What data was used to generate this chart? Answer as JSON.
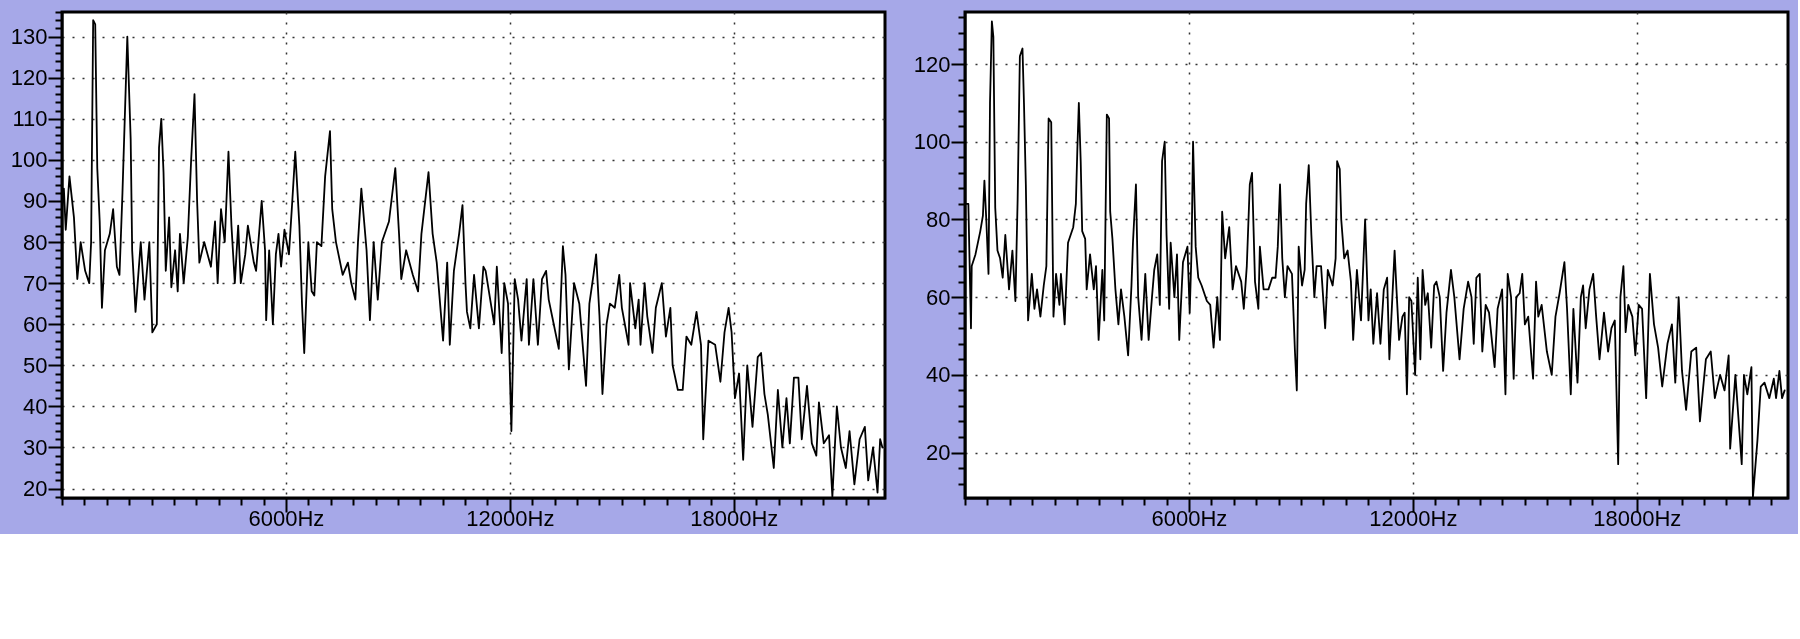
{
  "chart_data": [
    {
      "type": "line",
      "color": "#000000",
      "xlim": [
        0,
        22050
      ],
      "ylim": [
        17.7,
        136
      ],
      "grid": true,
      "xticks": [
        {
          "value": 0,
          "label": null
        },
        {
          "value": 600,
          "label": null
        },
        {
          "value": 1200,
          "label": null
        },
        {
          "value": 1800,
          "label": null
        },
        {
          "value": 2400,
          "label": null
        },
        {
          "value": 3000,
          "label": null
        },
        {
          "value": 3600,
          "label": null
        },
        {
          "value": 4200,
          "label": null
        },
        {
          "value": 4800,
          "label": null
        },
        {
          "value": 5400,
          "label": null
        },
        {
          "value": 6000,
          "label": "6000Hz"
        },
        {
          "value": 6600,
          "label": null
        },
        {
          "value": 7200,
          "label": null
        },
        {
          "value": 7800,
          "label": null
        },
        {
          "value": 8400,
          "label": null
        },
        {
          "value": 9000,
          "label": null
        },
        {
          "value": 9600,
          "label": null
        },
        {
          "value": 10200,
          "label": null
        },
        {
          "value": 10800,
          "label": null
        },
        {
          "value": 11400,
          "label": null
        },
        {
          "value": 12000,
          "label": "12000Hz"
        },
        {
          "value": 12600,
          "label": null
        },
        {
          "value": 13200,
          "label": null
        },
        {
          "value": 13800,
          "label": null
        },
        {
          "value": 14400,
          "label": null
        },
        {
          "value": 15000,
          "label": null
        },
        {
          "value": 15600,
          "label": null
        },
        {
          "value": 16200,
          "label": null
        },
        {
          "value": 16800,
          "label": null
        },
        {
          "value": 17400,
          "label": null
        },
        {
          "value": 18000,
          "label": "18000Hz"
        },
        {
          "value": 18600,
          "label": null
        },
        {
          "value": 19200,
          "label": null
        },
        {
          "value": 19800,
          "label": null
        },
        {
          "value": 20400,
          "label": null
        },
        {
          "value": 21000,
          "label": null
        },
        {
          "value": 21600,
          "label": null
        }
      ],
      "yticks": [
        {
          "value": 18,
          "label": null
        },
        20,
        {
          "value": 22,
          "label": null
        },
        {
          "value": 24,
          "label": null
        },
        {
          "value": 26,
          "label": null
        },
        {
          "value": 28,
          "label": null
        },
        30,
        {
          "value": 32,
          "label": null
        },
        {
          "value": 34,
          "label": null
        },
        {
          "value": 36,
          "label": null
        },
        {
          "value": 38,
          "label": null
        },
        40,
        {
          "value": 42,
          "label": null
        },
        {
          "value": 44,
          "label": null
        },
        {
          "value": 46,
          "label": null
        },
        {
          "value": 48,
          "label": null
        },
        50,
        {
          "value": 52,
          "label": null
        },
        {
          "value": 54,
          "label": null
        },
        {
          "value": 56,
          "label": null
        },
        {
          "value": 58,
          "label": null
        },
        60,
        {
          "value": 62,
          "label": null
        },
        {
          "value": 64,
          "label": null
        },
        {
          "value": 66,
          "label": null
        },
        {
          "value": 68,
          "label": null
        },
        70,
        {
          "value": 72,
          "label": null
        },
        {
          "value": 74,
          "label": null
        },
        {
          "value": 76,
          "label": null
        },
        {
          "value": 78,
          "label": null
        },
        80,
        {
          "value": 82,
          "label": null
        },
        {
          "value": 84,
          "label": null
        },
        {
          "value": 86,
          "label": null
        },
        {
          "value": 88,
          "label": null
        },
        90,
        {
          "value": 92,
          "label": null
        },
        {
          "value": 94,
          "label": null
        },
        {
          "value": 96,
          "label": null
        },
        {
          "value": 98,
          "label": null
        },
        100,
        {
          "value": 102,
          "label": null
        },
        {
          "value": 104,
          "label": null
        },
        {
          "value": 106,
          "label": null
        },
        {
          "value": 108,
          "label": null
        },
        110,
        {
          "value": 112,
          "label": null
        },
        {
          "value": 114,
          "label": null
        },
        {
          "value": 116,
          "label": null
        },
        {
          "value": 118,
          "label": null
        },
        120,
        {
          "value": 122,
          "label": null
        },
        {
          "value": 124,
          "label": null
        },
        {
          "value": 126,
          "label": null
        },
        {
          "value": 128,
          "label": null
        },
        130,
        {
          "value": 132,
          "label": null
        },
        {
          "value": 134,
          "label": null
        },
        {
          "value": 136,
          "label": null
        }
      ],
      "x": [
        0,
        50,
        100,
        200,
        320,
        410,
        500,
        620,
        730,
        780,
        835,
        890,
        945,
        1010,
        1070,
        1150,
        1280,
        1370,
        1470,
        1540,
        1620,
        1750,
        1840,
        1880,
        1970,
        2110,
        2210,
        2340,
        2420,
        2540,
        2600,
        2660,
        2720,
        2780,
        2870,
        2930,
        3030,
        3100,
        3160,
        3260,
        3370,
        3460,
        3550,
        3620,
        3680,
        3810,
        3990,
        4100,
        4170,
        4260,
        4360,
        4460,
        4540,
        4630,
        4720,
        4790,
        4910,
        4980,
        5140,
        5200,
        5350,
        5440,
        5470,
        5550,
        5650,
        5730,
        5800,
        5870,
        5960,
        6080,
        6170,
        6250,
        6360,
        6430,
        6490,
        6600,
        6690,
        6760,
        6830,
        6950,
        7050,
        7180,
        7240,
        7340,
        7520,
        7660,
        7750,
        7860,
        7930,
        8020,
        8160,
        8250,
        8350,
        8460,
        8570,
        8760,
        8930,
        9030,
        9090,
        9220,
        9400,
        9540,
        9630,
        9820,
        9930,
        10040,
        10210,
        10320,
        10390,
        10500,
        10640,
        10730,
        10810,
        10850,
        10940,
        11040,
        11170,
        11290,
        11350,
        11490,
        11580,
        11650,
        11780,
        11850,
        11950,
        12040,
        12130,
        12220,
        12310,
        12450,
        12510,
        12630,
        12750,
        12860,
        12970,
        13040,
        13130,
        13310,
        13420,
        13490,
        13580,
        13720,
        13860,
        14040,
        14130,
        14240,
        14310,
        14400,
        14480,
        14590,
        14680,
        14810,
        14930,
        15000,
        15180,
        15220,
        15360,
        15450,
        15500,
        15610,
        15680,
        15820,
        15910,
        16070,
        16180,
        16300,
        16360,
        16500,
        16630,
        16730,
        16860,
        17000,
        17120,
        17180,
        17320,
        17500,
        17640,
        17750,
        17860,
        17940,
        18030,
        18140,
        18250,
        18360,
        18500,
        18640,
        18730,
        18820,
        18910,
        19070,
        19180,
        19300,
        19410,
        19500,
        19610,
        19730,
        19820,
        19960,
        20090,
        20210,
        20280,
        20410,
        20550,
        20640,
        20760,
        20870,
        21000,
        21100,
        21230,
        21370,
        21510,
        21600,
        21730,
        21850,
        21920,
        21980
      ],
      "values": [
        88,
        93,
        83,
        96,
        86,
        71,
        80,
        73,
        70,
        80,
        134,
        133,
        98,
        85,
        64,
        78,
        82,
        88,
        74,
        72,
        92,
        130,
        105,
        78,
        63,
        80,
        66,
        80,
        58,
        60,
        103,
        110,
        97,
        73,
        86,
        69,
        78,
        68,
        82,
        70,
        81,
        100,
        116,
        90,
        75,
        80,
        74,
        85,
        70,
        88,
        80,
        102,
        84,
        70,
        84,
        70,
        77,
        84,
        75,
        73,
        90,
        78,
        61,
        78,
        60,
        77,
        82,
        74,
        83,
        77,
        90,
        102,
        84,
        65,
        53,
        80,
        68,
        67,
        80,
        79,
        96,
        107,
        88,
        80,
        72,
        75,
        70,
        66,
        80,
        93,
        78,
        61,
        80,
        66,
        80,
        85,
        98,
        82,
        71,
        78,
        72,
        68,
        82,
        97,
        82,
        75,
        56,
        75,
        55,
        73,
        82,
        89,
        70,
        63,
        59,
        72,
        59,
        74,
        73,
        65,
        60,
        74,
        53,
        70,
        65,
        34,
        71,
        66,
        56,
        71,
        55,
        71,
        55,
        71,
        73,
        66,
        62,
        54,
        79,
        72,
        49,
        70,
        65,
        45,
        65,
        72,
        77,
        62,
        43,
        60,
        65,
        64,
        72,
        64,
        55,
        70,
        59,
        66,
        55,
        70,
        62,
        53,
        64,
        70,
        57,
        64,
        50,
        44,
        44,
        57,
        55,
        63,
        55,
        32,
        56,
        55,
        46,
        58,
        64,
        58,
        42,
        48,
        27,
        50,
        35,
        52,
        53,
        43,
        38,
        25,
        44,
        30,
        42,
        31,
        47,
        47,
        32,
        45,
        31,
        28,
        41,
        31,
        33,
        18,
        40,
        30,
        25,
        34,
        21,
        32,
        35,
        22,
        30,
        19,
        32,
        30
      ]
    },
    {
      "type": "line",
      "color": "#000000",
      "xlim": [
        0,
        22050
      ],
      "ylim": [
        8.3,
        133.4
      ],
      "grid": true,
      "xticks": [
        {
          "value": 0,
          "label": null
        },
        {
          "value": 600,
          "label": null
        },
        {
          "value": 1200,
          "label": null
        },
        {
          "value": 1800,
          "label": null
        },
        {
          "value": 2400,
          "label": null
        },
        {
          "value": 3000,
          "label": null
        },
        {
          "value": 3600,
          "label": null
        },
        {
          "value": 4200,
          "label": null
        },
        {
          "value": 4800,
          "label": null
        },
        {
          "value": 5400,
          "label": null
        },
        {
          "value": 6000,
          "label": "6000Hz"
        },
        {
          "value": 6600,
          "label": null
        },
        {
          "value": 7200,
          "label": null
        },
        {
          "value": 7800,
          "label": null
        },
        {
          "value": 8400,
          "label": null
        },
        {
          "value": 9000,
          "label": null
        },
        {
          "value": 9600,
          "label": null
        },
        {
          "value": 10200,
          "label": null
        },
        {
          "value": 10800,
          "label": null
        },
        {
          "value": 11400,
          "label": null
        },
        {
          "value": 12000,
          "label": "12000Hz"
        },
        {
          "value": 12600,
          "label": null
        },
        {
          "value": 13200,
          "label": null
        },
        {
          "value": 13800,
          "label": null
        },
        {
          "value": 14400,
          "label": null
        },
        {
          "value": 15000,
          "label": null
        },
        {
          "value": 15600,
          "label": null
        },
        {
          "value": 16200,
          "label": null
        },
        {
          "value": 16800,
          "label": null
        },
        {
          "value": 17400,
          "label": null
        },
        {
          "value": 18000,
          "label": "18000Hz"
        },
        {
          "value": 18600,
          "label": null
        },
        {
          "value": 19200,
          "label": null
        },
        {
          "value": 19800,
          "label": null
        },
        {
          "value": 20400,
          "label": null
        },
        {
          "value": 21000,
          "label": null
        },
        {
          "value": 21600,
          "label": null
        }
      ],
      "yticks": [
        {
          "value": 12,
          "label": null
        },
        {
          "value": 16,
          "label": null
        },
        20,
        {
          "value": 24,
          "label": null
        },
        {
          "value": 28,
          "label": null
        },
        {
          "value": 32,
          "label": null
        },
        {
          "value": 36,
          "label": null
        },
        40,
        {
          "value": 44,
          "label": null
        },
        {
          "value": 48,
          "label": null
        },
        {
          "value": 52,
          "label": null
        },
        {
          "value": 56,
          "label": null
        },
        60,
        {
          "value": 64,
          "label": null
        },
        {
          "value": 68,
          "label": null
        },
        {
          "value": 72,
          "label": null
        },
        {
          "value": 76,
          "label": null
        },
        80,
        {
          "value": 84,
          "label": null
        },
        {
          "value": 88,
          "label": null
        },
        {
          "value": 92,
          "label": null
        },
        {
          "value": 96,
          "label": null
        },
        100,
        {
          "value": 104,
          "label": null
        },
        {
          "value": 108,
          "label": null
        },
        {
          "value": 112,
          "label": null
        },
        {
          "value": 116,
          "label": null
        },
        120,
        {
          "value": 124,
          "label": null
        },
        {
          "value": 128,
          "label": null
        },
        {
          "value": 132,
          "label": null
        }
      ],
      "x": [
        0,
        90,
        160,
        180,
        280,
        410,
        480,
        520,
        570,
        630,
        670,
        720,
        760,
        810,
        870,
        940,
        1010,
        1080,
        1180,
        1270,
        1350,
        1410,
        1470,
        1540,
        1580,
        1630,
        1690,
        1790,
        1860,
        1930,
        2020,
        2110,
        2180,
        2240,
        2310,
        2370,
        2440,
        2530,
        2570,
        2670,
        2760,
        2900,
        2970,
        3010,
        3050,
        3100,
        3140,
        3220,
        3260,
        3350,
        3450,
        3510,
        3580,
        3680,
        3730,
        3800,
        3860,
        3890,
        3950,
        4030,
        4110,
        4180,
        4270,
        4370,
        4460,
        4500,
        4580,
        4640,
        4730,
        4830,
        4920,
        5010,
        5070,
        5150,
        5220,
        5280,
        5350,
        5400,
        5470,
        5510,
        5610,
        5680,
        5740,
        5840,
        5960,
        6020,
        6070,
        6110,
        6180,
        6250,
        6340,
        6480,
        6570,
        6660,
        6760,
        6830,
        6890,
        6970,
        7080,
        7170,
        7260,
        7400,
        7470,
        7550,
        7630,
        7690,
        7770,
        7860,
        7900,
        8000,
        8130,
        8230,
        8320,
        8380,
        8440,
        8500,
        8570,
        8640,
        8760,
        8840,
        8890,
        8940,
        9030,
        9100,
        9140,
        9210,
        9280,
        9360,
        9420,
        9540,
        9650,
        9720,
        9850,
        9930,
        9970,
        10040,
        10080,
        10160,
        10250,
        10340,
        10400,
        10500,
        10610,
        10720,
        10810,
        10870,
        10940,
        11040,
        11130,
        11220,
        11310,
        11370,
        11450,
        11510,
        11560,
        11630,
        11720,
        11780,
        11840,
        11900,
        11960,
        12060,
        12130,
        12200,
        12260,
        12330,
        12400,
        12490,
        12570,
        12630,
        12720,
        12810,
        12900,
        13020,
        13110,
        13250,
        13360,
        13480,
        13570,
        13630,
        13700,
        13790,
        13860,
        13950,
        14040,
        14190,
        14270,
        14390,
        14480,
        14540,
        14630,
        14700,
        14770,
        14860,
        14930,
        15000,
        15090,
        15220,
        15300,
        15360,
        15450,
        15590,
        15720,
        15820,
        15930,
        16060,
        16130,
        16230,
        16300,
        16410,
        16500,
        16560,
        16630,
        16730,
        16830,
        16910,
        17000,
        17120,
        17230,
        17320,
        17410,
        17500,
        17560,
        17640,
        17700,
        17770,
        17880,
        17960,
        18050,
        18140,
        18250,
        18350,
        18460,
        18570,
        18680,
        18820,
        18940,
        19030,
        19120,
        19210,
        19320,
        19460,
        19590,
        19690,
        19850,
        19980,
        20090,
        20230,
        20350,
        20460,
        20500,
        20640,
        20810,
        20870,
        20960,
        21070,
        21110,
        21230,
        21320,
        21420,
        21550,
        21670,
        21730,
        21820,
        21890,
        21960
      ],
      "values": [
        84,
        84,
        52,
        68,
        71,
        77,
        81,
        90,
        80,
        66,
        110,
        131,
        127,
        83,
        72,
        70,
        65,
        76,
        62,
        72,
        59,
        85,
        122,
        124,
        110,
        89,
        54,
        66,
        57,
        62,
        55,
        63,
        68,
        106,
        105,
        55,
        66,
        58,
        66,
        53,
        74,
        78,
        84,
        98,
        110,
        95,
        77,
        75,
        62,
        71,
        62,
        68,
        49,
        67,
        54,
        107,
        106,
        82,
        75,
        62,
        53,
        62,
        55,
        45,
        63,
        74,
        89,
        60,
        49,
        66,
        49,
        60,
        67,
        71,
        58,
        95,
        100,
        76,
        57,
        74,
        60,
        71,
        49,
        69,
        73,
        56,
        72,
        100,
        73,
        65,
        63,
        59,
        58,
        47,
        60,
        49,
        82,
        70,
        78,
        62,
        68,
        64,
        57,
        68,
        89,
        92,
        64,
        57,
        73,
        62,
        62,
        65,
        65,
        73,
        89,
        70,
        60,
        68,
        66,
        46,
        36,
        73,
        63,
        67,
        84,
        94,
        76,
        60,
        68,
        68,
        52,
        67,
        63,
        70,
        95,
        93,
        80,
        70,
        72,
        64,
        49,
        67,
        54,
        80,
        54,
        62,
        48,
        61,
        48,
        62,
        65,
        44,
        60,
        72,
        62,
        49,
        55,
        56,
        35,
        60,
        59,
        40,
        65,
        44,
        67,
        58,
        61,
        47,
        63,
        64,
        60,
        41,
        56,
        67,
        60,
        44,
        57,
        64,
        60,
        48,
        65,
        66,
        46,
        58,
        56,
        42,
        57,
        62,
        35,
        66,
        60,
        39,
        60,
        61,
        66,
        53,
        55,
        39,
        64,
        55,
        58,
        46,
        40,
        55,
        61,
        69,
        57,
        35,
        57,
        38,
        60,
        63,
        52,
        62,
        66,
        55,
        44,
        56,
        46,
        52,
        54,
        17,
        60,
        68,
        51,
        58,
        55,
        45,
        58,
        57,
        34,
        66,
        53,
        47,
        37,
        48,
        53,
        38,
        60,
        41,
        31,
        46,
        47,
        28,
        44,
        46,
        34,
        40,
        36,
        45,
        21,
        40,
        17,
        40,
        35,
        42,
        8.5,
        23,
        37,
        38,
        34,
        39,
        34,
        41,
        34,
        36
      ]
    }
  ]
}
